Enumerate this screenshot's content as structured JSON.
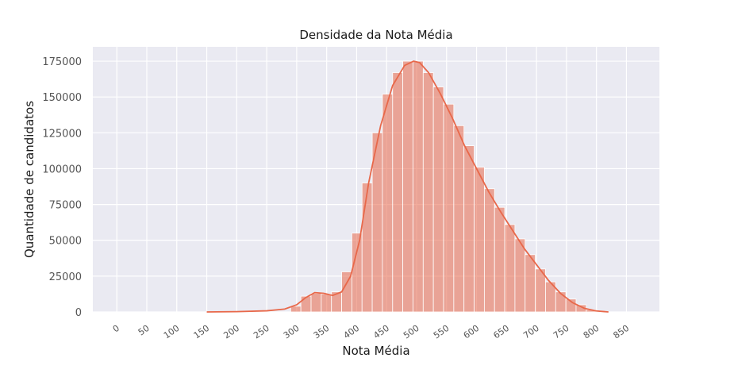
{
  "chart_data": {
    "type": "bar",
    "title": "Densidade da Nota Média",
    "xlabel": "Nota Média",
    "ylabel": "Quantidade de candidatos",
    "xlim": [
      -40,
      905
    ],
    "ylim": [
      0,
      185000
    ],
    "grid": true,
    "xticks": [
      0,
      50,
      100,
      150,
      200,
      250,
      300,
      350,
      400,
      450,
      500,
      550,
      600,
      650,
      700,
      750,
      800,
      850
    ],
    "yticks": [
      0,
      25000,
      50000,
      75000,
      100000,
      125000,
      150000,
      175000
    ],
    "colors": {
      "bars": "#e8684a",
      "kde": "#e8684a",
      "plot_bg": "#eaeaf2"
    },
    "bin_edges": [
      290,
      307,
      324,
      341,
      358,
      375,
      392,
      409,
      426,
      443,
      460,
      477,
      494,
      511,
      528,
      545,
      562,
      579,
      596,
      613,
      630,
      647,
      664,
      681,
      698,
      715,
      732,
      749,
      766,
      783,
      800
    ],
    "values": [
      4000,
      11000,
      13000,
      12500,
      14000,
      28000,
      55000,
      90000,
      125000,
      152000,
      167000,
      175000,
      175000,
      167000,
      157000,
      145000,
      130000,
      116000,
      101000,
      86000,
      73000,
      61000,
      51000,
      40000,
      30000,
      21000,
      14000,
      9000,
      5000,
      1500
    ],
    "kde": {
      "x": [
        150,
        200,
        250,
        280,
        300,
        315,
        330,
        345,
        360,
        375,
        390,
        405,
        420,
        440,
        460,
        480,
        495,
        505,
        520,
        540,
        560,
        580,
        600,
        620,
        640,
        660,
        680,
        700,
        720,
        740,
        760,
        780,
        800,
        820
      ],
      "y": [
        0,
        200,
        800,
        2000,
        5000,
        10000,
        13500,
        13000,
        11500,
        14000,
        25000,
        50000,
        90000,
        130000,
        158000,
        172000,
        175000,
        174000,
        167000,
        152000,
        135000,
        116000,
        100000,
        84000,
        70000,
        57000,
        44000,
        33000,
        22000,
        13000,
        6500,
        2500,
        700,
        0
      ]
    }
  }
}
